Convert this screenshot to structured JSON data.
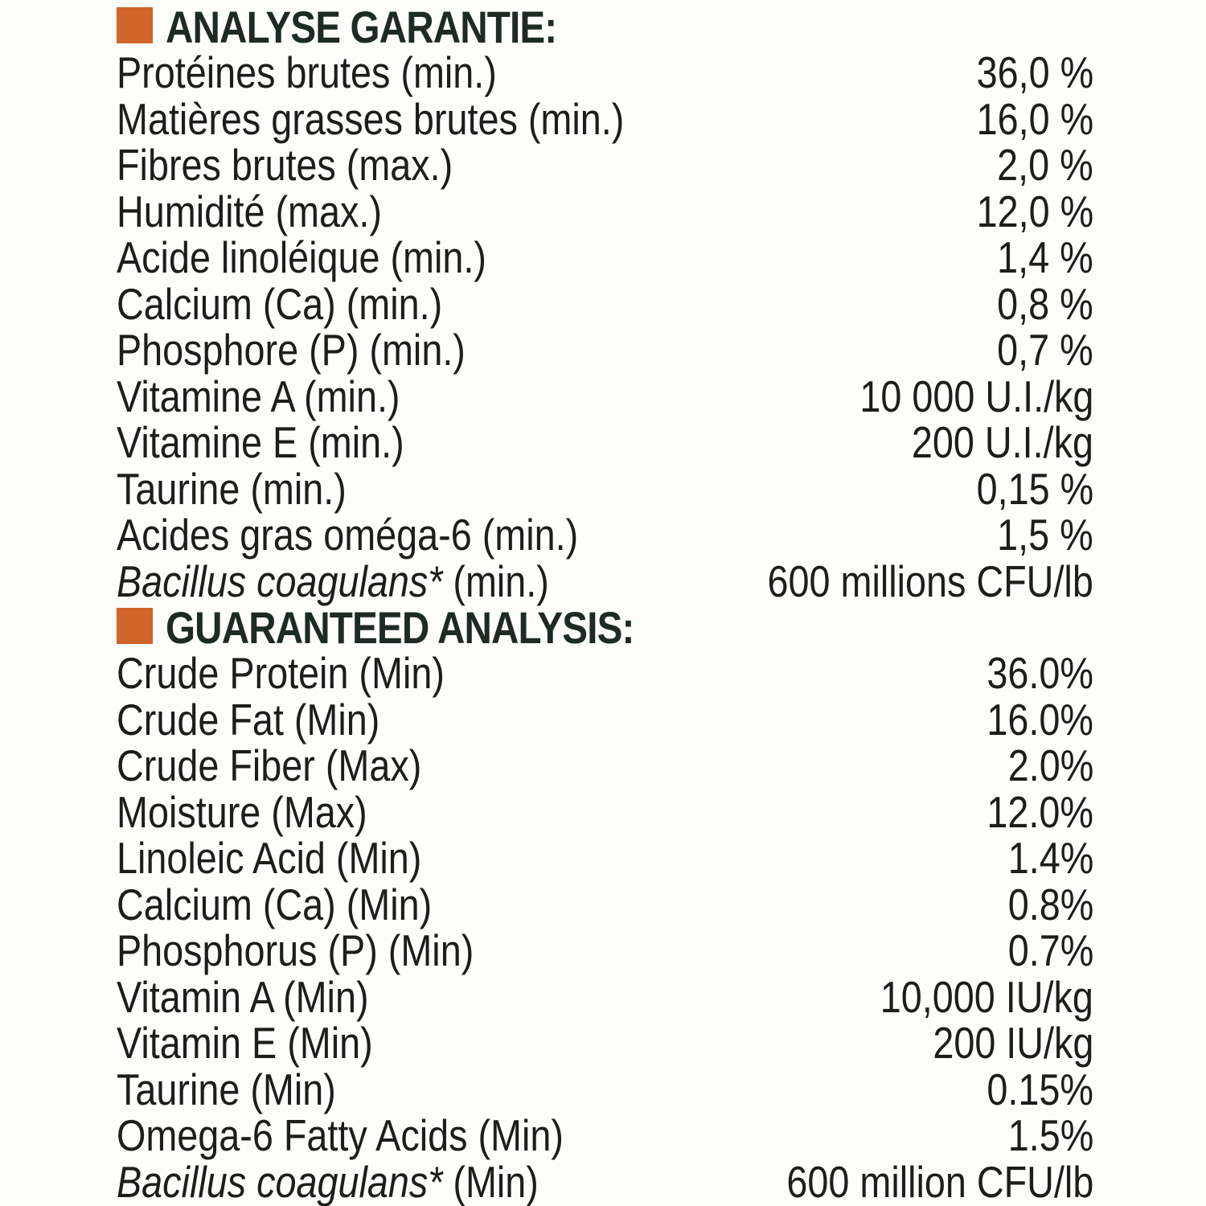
{
  "colors": {
    "accent_square": "#d0662a",
    "header_text": "#1e2a24",
    "body_text": "#1d1d1b",
    "background": "#fdfdfc"
  },
  "sections": [
    {
      "title": "ANALYSE GARANTIE:",
      "rows": [
        {
          "label": "Protéines brutes (min.)",
          "value": "36,0 %"
        },
        {
          "label": "Matières grasses brutes (min.)",
          "value": "16,0 %"
        },
        {
          "label": "Fibres brutes (max.)",
          "value": "2,0 %"
        },
        {
          "label": "Humidité (max.)",
          "value": "12,0 %"
        },
        {
          "label": "Acide linoléique (min.)",
          "value": "1,4 %"
        },
        {
          "label": "Calcium (Ca) (min.)",
          "value": "0,8 %"
        },
        {
          "label": "Phosphore (P) (min.)",
          "value": "0,7 %"
        },
        {
          "label": "Vitamine A (min.)",
          "value": "10 000 U.I./kg"
        },
        {
          "label": "Vitamine E (min.)",
          "value": "200 U.I./kg"
        },
        {
          "label": "Taurine (min.)",
          "value": "0,15 %"
        },
        {
          "label": "Acides gras oméga-6 (min.)",
          "value": "1,5 %"
        },
        {
          "label_italic": "Bacillus coagulans*",
          "label": " (min.)",
          "value": "600 millions CFU/lb"
        }
      ]
    },
    {
      "title": "GUARANTEED ANALYSIS:",
      "rows": [
        {
          "label": "Crude Protein (Min)",
          "value": "36.0%"
        },
        {
          "label": "Crude Fat (Min)",
          "value": "16.0%"
        },
        {
          "label": "Crude Fiber (Max)",
          "value": "2.0%"
        },
        {
          "label": "Moisture (Max)",
          "value": "12.0%"
        },
        {
          "label": "Linoleic Acid (Min)",
          "value": "1.4%"
        },
        {
          "label": "Calcium (Ca) (Min)",
          "value": "0.8%"
        },
        {
          "label": "Phosphorus (P) (Min)",
          "value": "0.7%"
        },
        {
          "label": "Vitamin A (Min)",
          "value": "10,000 IU/kg"
        },
        {
          "label": "Vitamin E (Min)",
          "value": "200 IU/kg"
        },
        {
          "label": "Taurine (Min)",
          "value": "0.15%"
        },
        {
          "label": "Omega-6 Fatty Acids (Min)",
          "value": "1.5%"
        },
        {
          "label_italic": "Bacillus coagulans*",
          "label": " (Min)",
          "value": "600 million CFU/lb"
        }
      ]
    }
  ]
}
